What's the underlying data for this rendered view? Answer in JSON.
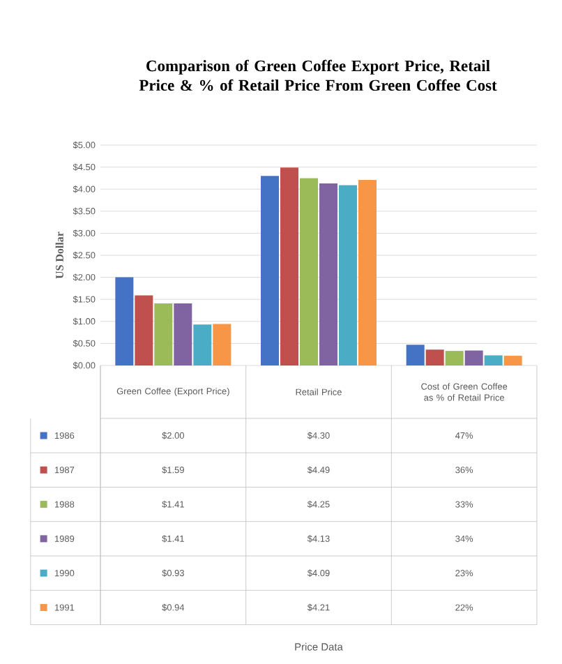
{
  "chart_data": {
    "type": "bar",
    "title": "Comparison of Green Coffee Export Price, Retail Price & % of Retail Price From Green Coffee Cost",
    "annotations": [
      "Price Data"
    ],
    "ylabel": "US Dollar",
    "categories": [
      "Green Coffee (Export Price)",
      "Retail Price",
      "Cost of Green Coffee as % of Retail Price"
    ],
    "series": [
      {
        "name": "1986",
        "color": "#4472c4",
        "values": [
          2.0,
          4.3,
          0.47
        ],
        "value_labels": [
          "$2.00",
          "$4.30",
          "47%"
        ]
      },
      {
        "name": "1987",
        "color": "#c0504d",
        "values": [
          1.59,
          4.49,
          0.36
        ],
        "value_labels": [
          "$1.59",
          "$4.49",
          "36%"
        ]
      },
      {
        "name": "1988",
        "color": "#9bbb59",
        "values": [
          1.41,
          4.25,
          0.33
        ],
        "value_labels": [
          "$1.41",
          "$4.25",
          "33%"
        ]
      },
      {
        "name": "1989",
        "color": "#8064a2",
        "values": [
          1.41,
          4.13,
          0.34
        ],
        "value_labels": [
          "$1.41",
          "$4.13",
          "34%"
        ]
      },
      {
        "name": "1990",
        "color": "#4bacc6",
        "values": [
          0.93,
          4.09,
          0.23
        ],
        "value_labels": [
          "$0.93",
          "$4.09",
          "23%"
        ]
      },
      {
        "name": "1991",
        "color": "#f79646",
        "values": [
          0.94,
          4.21,
          0.22
        ],
        "value_labels": [
          "$0.94",
          "$4.21",
          "22%"
        ]
      }
    ],
    "ylim": [
      0,
      5
    ],
    "yticks": [
      {
        "value": 0,
        "label": "$0.00"
      },
      {
        "value": 0.5,
        "label": "$0.50"
      },
      {
        "value": 1,
        "label": "$1.00"
      },
      {
        "value": 1.5,
        "label": "$1.50"
      },
      {
        "value": 2,
        "label": "$2.00"
      },
      {
        "value": 2.5,
        "label": "$2.50"
      },
      {
        "value": 3,
        "label": "$3.00"
      },
      {
        "value": 3.5,
        "label": "$3.50"
      },
      {
        "value": 4,
        "label": "$4.00"
      },
      {
        "value": 4.5,
        "label": "$4.50"
      },
      {
        "value": 5,
        "label": "$5.00"
      }
    ],
    "grid": "y",
    "legend": "bottom left"
  }
}
